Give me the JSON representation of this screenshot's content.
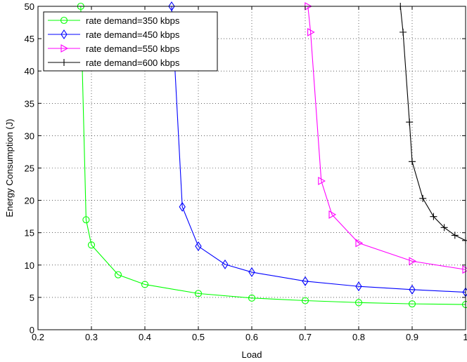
{
  "chart_data": {
    "type": "line",
    "title": "",
    "xlabel": "Load",
    "ylabel": "Energy Consumption (J)",
    "xlim": [
      0.2,
      1
    ],
    "ylim": [
      0,
      50
    ],
    "xticks": [
      0.2,
      0.3,
      0.4,
      0.5,
      0.6,
      0.7,
      0.8,
      0.9,
      1
    ],
    "xtick_labels": [
      "0.2",
      "0.3",
      "0.4",
      "0.5",
      "0.6",
      "0.7",
      "0.8",
      "0.9",
      "1"
    ],
    "yticks": [
      0,
      5,
      10,
      15,
      20,
      25,
      30,
      35,
      40,
      45,
      50
    ],
    "ytick_labels": [
      "0",
      "5",
      "10",
      "15",
      "20",
      "25",
      "30",
      "35",
      "40",
      "45",
      "50"
    ],
    "grid": true,
    "legend_position": "top-left",
    "series": [
      {
        "name": "rate demand=350 kbps",
        "color": "#00ff00",
        "marker": "circle",
        "x": [
          0.28,
          0.29,
          0.3,
          0.35,
          0.4,
          0.5,
          0.6,
          0.7,
          0.8,
          0.9,
          1.0
        ],
        "y": [
          50,
          17,
          13.1,
          8.5,
          7.0,
          5.6,
          4.9,
          4.5,
          4.2,
          4.0,
          3.9
        ]
      },
      {
        "name": "rate demand=450 kbps",
        "color": "#0000ff",
        "marker": "diamond",
        "x": [
          0.45,
          0.47,
          0.5,
          0.55,
          0.6,
          0.7,
          0.8,
          0.9,
          1.0
        ],
        "y": [
          50,
          19,
          12.9,
          10.1,
          8.9,
          7.5,
          6.7,
          6.2,
          5.8
        ]
      },
      {
        "name": "rate demand=550 kbps",
        "color": "#ff00ff",
        "marker": "triangle-right",
        "x": [
          0.705,
          0.71,
          0.73,
          0.75,
          0.8,
          0.9,
          1.0
        ],
        "y": [
          50,
          46,
          23,
          17.8,
          13.4,
          10.6,
          9.3
        ]
      },
      {
        "name": "rate demand=600 kbps",
        "color": "#000000",
        "marker": "plus",
        "x": [
          0.878,
          0.883,
          0.895,
          0.9,
          0.92,
          0.94,
          0.96,
          0.98,
          1.0
        ],
        "y": [
          50,
          46,
          32.1,
          26,
          20.3,
          17.5,
          15.8,
          14.6,
          13.8
        ]
      }
    ]
  }
}
